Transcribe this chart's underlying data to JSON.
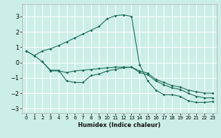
{
  "xlabel": "Humidex (Indice chaleur)",
  "ylabel": "",
  "bg_color": "#cceee8",
  "line_color": "#1a6b5a",
  "grid_color": "#ffffff",
  "xlim": [
    -0.5,
    23.5
  ],
  "ylim": [
    -3.3,
    3.8
  ],
  "yticks": [
    -3,
    -2,
    -1,
    0,
    1,
    2,
    3
  ],
  "xticks": [
    0,
    1,
    2,
    3,
    4,
    5,
    6,
    7,
    8,
    9,
    10,
    11,
    12,
    13,
    14,
    15,
    16,
    17,
    18,
    19,
    20,
    21,
    22,
    23
  ],
  "line1_x": [
    0,
    1,
    2,
    3,
    4,
    5,
    6,
    7,
    8,
    9,
    10,
    11,
    12,
    13,
    14,
    15,
    16,
    17,
    18,
    19,
    20,
    21,
    22,
    23
  ],
  "line1_y": [
    0.75,
    0.45,
    0.75,
    0.9,
    1.1,
    1.35,
    1.6,
    1.85,
    2.1,
    2.35,
    2.85,
    3.05,
    3.1,
    3.0,
    -0.15,
    -1.2,
    -1.8,
    -2.1,
    -2.1,
    -2.2,
    -2.5,
    -2.6,
    -2.6,
    -2.55
  ],
  "line2_x": [
    2,
    3,
    4,
    5,
    6,
    7,
    8,
    9,
    10,
    11,
    12,
    13,
    14,
    15,
    16,
    17,
    18,
    19,
    20,
    21,
    22,
    23
  ],
  "line2_y": [
    0.05,
    -0.55,
    -0.55,
    -0.65,
    -0.55,
    -0.5,
    -0.45,
    -0.4,
    -0.35,
    -0.3,
    -0.3,
    -0.3,
    -0.55,
    -0.7,
    -1.1,
    -1.3,
    -1.5,
    -1.6,
    -1.8,
    -1.9,
    -2.0,
    -2.0
  ],
  "line3_x": [
    0,
    1,
    2,
    3,
    4,
    5,
    6,
    7,
    8,
    9,
    10,
    11,
    12,
    13,
    14,
    15,
    16,
    17,
    18,
    19,
    20,
    21,
    22,
    23
  ],
  "line3_y": [
    0.75,
    0.45,
    0.05,
    -0.5,
    -0.5,
    -1.2,
    -1.3,
    -1.3,
    -0.85,
    -0.75,
    -0.55,
    -0.45,
    -0.35,
    -0.3,
    -0.65,
    -0.8,
    -1.2,
    -1.45,
    -1.65,
    -1.75,
    -2.0,
    -2.2,
    -2.3,
    -2.3
  ]
}
